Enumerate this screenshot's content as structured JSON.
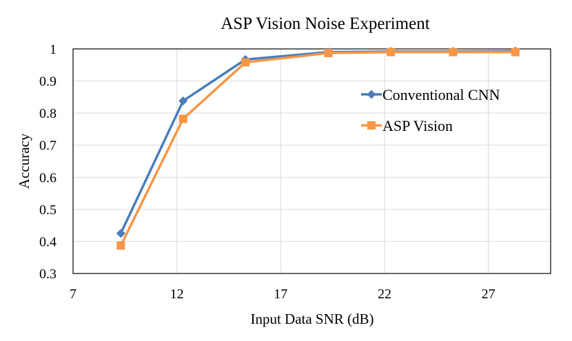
{
  "chart_data": {
    "type": "line",
    "title": "ASP Vision Noise Experiment",
    "xlabel": "Input Data SNR (dB)",
    "ylabel": "Accuracy",
    "xlim": [
      7,
      30
    ],
    "ylim": [
      0.3,
      1.0
    ],
    "xticks": [
      7,
      12,
      17,
      22,
      27
    ],
    "yticks": [
      0.3,
      0.4,
      0.5,
      0.6,
      0.7,
      0.8,
      0.9,
      1.0
    ],
    "ytick_labels": [
      "0.3",
      "0.4",
      "0.5",
      "0.6",
      "0.7",
      "0.8",
      "0.9",
      "1"
    ],
    "grid": true,
    "legend_position": "right",
    "x": [
      9.3,
      12.3,
      15.3,
      19.3,
      22.3,
      25.3,
      28.3
    ],
    "series": [
      {
        "name": "Conventional CNN",
        "color": "#4a7ebb",
        "marker": "diamond",
        "values": [
          0.425,
          0.838,
          0.967,
          0.99,
          0.992,
          0.992,
          0.993
        ]
      },
      {
        "name": "ASP Vision",
        "color": "#f79646",
        "marker": "square",
        "values": [
          0.387,
          0.782,
          0.958,
          0.987,
          0.99,
          0.99,
          0.99
        ]
      }
    ]
  }
}
